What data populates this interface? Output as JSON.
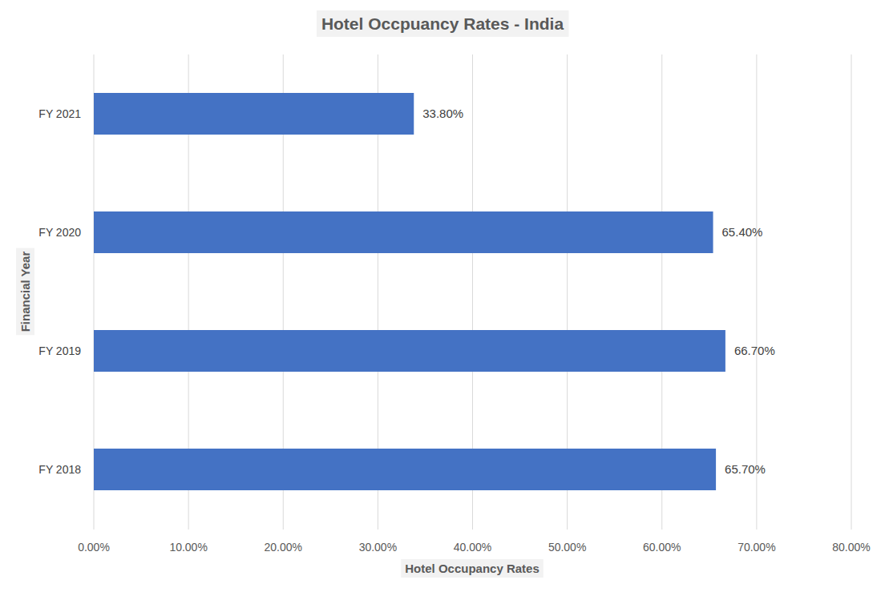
{
  "chart_data": {
    "type": "bar",
    "orientation": "horizontal",
    "title": "Hotel Occpuancy Rates - India",
    "x_label": "Hotel Occupancy Rates",
    "y_label": "Financial Year",
    "categories": [
      "FY 2018",
      "FY 2019",
      "FY 2020",
      "FY 2021"
    ],
    "values": [
      65.7,
      66.7,
      65.4,
      33.8
    ],
    "value_labels": [
      "65.70%",
      "66.70%",
      "65.40%",
      "33.80%"
    ],
    "color": "#4472c4",
    "xlim": [
      0,
      80
    ],
    "xticks": [
      {
        "value": 0,
        "label": "0.00%"
      },
      {
        "value": 10,
        "label": "10.00%"
      },
      {
        "value": 20,
        "label": "20.00%"
      },
      {
        "value": 30,
        "label": "30.00%"
      },
      {
        "value": 40,
        "label": "40.00%"
      },
      {
        "value": 50,
        "label": "50.00%"
      },
      {
        "value": 60,
        "label": "60.00%"
      },
      {
        "value": 70,
        "label": "70.00%"
      },
      {
        "value": 80,
        "label": "80.00%"
      }
    ],
    "grid": true,
    "data_labels": true
  }
}
